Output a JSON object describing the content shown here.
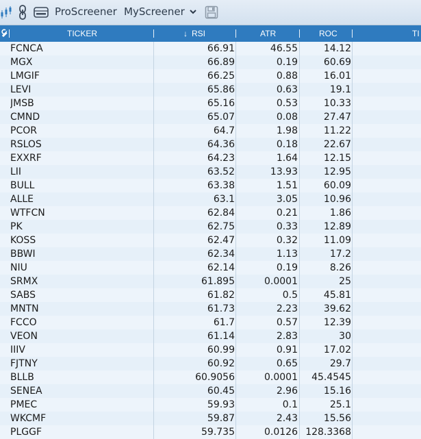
{
  "toolbar": {
    "app_label": "ProScreener",
    "screener_name": "MyScreener"
  },
  "table": {
    "headers": {
      "ticker": "TICKER",
      "rsi": "RSI",
      "rsi_sort_arrow": "↓",
      "atr": "ATR",
      "roc": "ROC",
      "cut": "TI"
    },
    "rows": [
      {
        "ticker": "FCNCA",
        "rsi": "66.91",
        "atr": "46.55",
        "roc": "14.12"
      },
      {
        "ticker": "MGX",
        "rsi": "66.89",
        "atr": "0.19",
        "roc": "60.69"
      },
      {
        "ticker": "LMGIF",
        "rsi": "66.25",
        "atr": "0.88",
        "roc": "16.01"
      },
      {
        "ticker": "LEVI",
        "rsi": "65.86",
        "atr": "0.63",
        "roc": "19.1"
      },
      {
        "ticker": "JMSB",
        "rsi": "65.16",
        "atr": "0.53",
        "roc": "10.33"
      },
      {
        "ticker": "CMND",
        "rsi": "65.07",
        "atr": "0.08",
        "roc": "27.47"
      },
      {
        "ticker": "PCOR",
        "rsi": "64.7",
        "atr": "1.98",
        "roc": "11.22"
      },
      {
        "ticker": "RSLOS",
        "rsi": "64.36",
        "atr": "0.18",
        "roc": "22.67"
      },
      {
        "ticker": "EXXRF",
        "rsi": "64.23",
        "atr": "1.64",
        "roc": "12.15"
      },
      {
        "ticker": "LII",
        "rsi": "63.52",
        "atr": "13.93",
        "roc": "12.95"
      },
      {
        "ticker": "BULL",
        "rsi": "63.38",
        "atr": "1.51",
        "roc": "60.09"
      },
      {
        "ticker": "ALLE",
        "rsi": "63.1",
        "atr": "3.05",
        "roc": "10.96"
      },
      {
        "ticker": "WTFCN",
        "rsi": "62.84",
        "atr": "0.21",
        "roc": "1.86"
      },
      {
        "ticker": "PK",
        "rsi": "62.75",
        "atr": "0.33",
        "roc": "12.89"
      },
      {
        "ticker": "KOSS",
        "rsi": "62.47",
        "atr": "0.32",
        "roc": "11.09"
      },
      {
        "ticker": "BBWI",
        "rsi": "62.34",
        "atr": "1.13",
        "roc": "17.2"
      },
      {
        "ticker": "NIU",
        "rsi": "62.14",
        "atr": "0.19",
        "roc": "8.26"
      },
      {
        "ticker": "SRMX",
        "rsi": "61.895",
        "atr": "0.0001",
        "roc": "25"
      },
      {
        "ticker": "SABS",
        "rsi": "61.82",
        "atr": "0.5",
        "roc": "45.81"
      },
      {
        "ticker": "MNTN",
        "rsi": "61.73",
        "atr": "2.23",
        "roc": "39.62"
      },
      {
        "ticker": "FCCO",
        "rsi": "61.7",
        "atr": "0.57",
        "roc": "12.39"
      },
      {
        "ticker": "VEON",
        "rsi": "61.14",
        "atr": "2.83",
        "roc": "30"
      },
      {
        "ticker": "IIIV",
        "rsi": "60.99",
        "atr": "0.91",
        "roc": "17.02"
      },
      {
        "ticker": "FJTNY",
        "rsi": "60.92",
        "atr": "0.65",
        "roc": "29.7"
      },
      {
        "ticker": "BLLB",
        "rsi": "60.9056",
        "atr": "0.0001",
        "roc": "45.4545"
      },
      {
        "ticker": "SENEA",
        "rsi": "60.45",
        "atr": "2.96",
        "roc": "15.16"
      },
      {
        "ticker": "PMEC",
        "rsi": "59.93",
        "atr": "0.1",
        "roc": "25.1"
      },
      {
        "ticker": "WKCMF",
        "rsi": "59.87",
        "atr": "2.43",
        "roc": "15.56"
      },
      {
        "ticker": "PLGGF",
        "rsi": "59.735",
        "atr": "0.0126",
        "roc": "128.3368"
      }
    ]
  }
}
